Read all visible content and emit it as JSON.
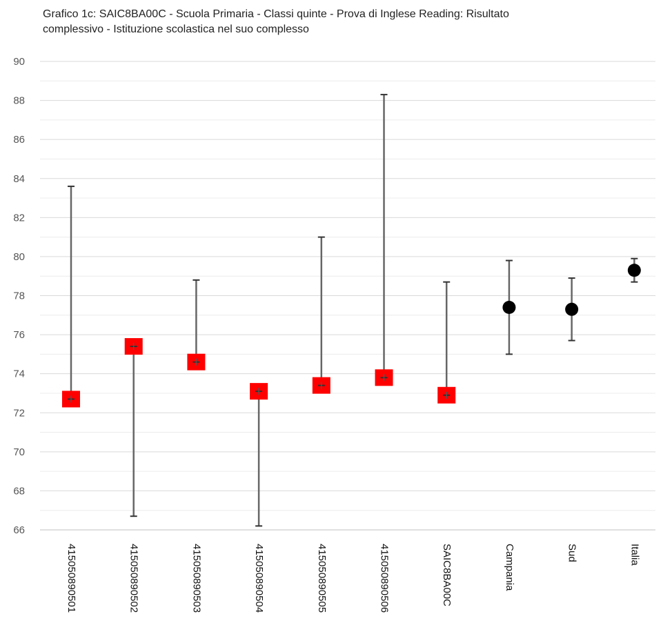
{
  "chart_data": {
    "type": "scatter",
    "title_line1": "Grafico 1c: SAIC8BA00C - Scuola Primaria - Classi quinte - Prova di Inglese Reading: Risultato",
    "title_line2": "complessivo - Istituzione scolastica nel suo complesso",
    "xlabel": "",
    "ylabel": "",
    "ylim": [
      66,
      90
    ],
    "ytick_step": 2,
    "minor_grid_step": 1,
    "grid": true,
    "categories": [
      "41505089050 1",
      "41505089050 2",
      "41505089050 3",
      "41505089050 4",
      "41505089050 5",
      "41505089050 6",
      "SAIC8BA00C",
      "Campania",
      "Sud",
      "Italia"
    ],
    "category_labels": [
      "415050890501",
      "415050890502",
      "415050890503",
      "415050890504",
      "415050890505",
      "415050890506",
      "SAIC8BA00C",
      "Campania",
      "Sud",
      "Italia"
    ],
    "points": [
      {
        "value": 72.7,
        "low": 72.7,
        "high": 83.6,
        "marker": "square",
        "color": "#ff0000"
      },
      {
        "value": 75.4,
        "low": 66.7,
        "high": 75.4,
        "marker": "square",
        "color": "#ff0000"
      },
      {
        "value": 74.6,
        "low": 74.6,
        "high": 78.8,
        "marker": "square",
        "color": "#ff0000"
      },
      {
        "value": 73.1,
        "low": 66.2,
        "high": 73.1,
        "marker": "square",
        "color": "#ff0000"
      },
      {
        "value": 73.4,
        "low": 73.4,
        "high": 81.0,
        "marker": "square",
        "color": "#ff0000"
      },
      {
        "value": 73.8,
        "low": 73.8,
        "high": 88.3,
        "marker": "square",
        "color": "#ff0000"
      },
      {
        "value": 72.9,
        "low": 72.9,
        "high": 78.7,
        "marker": "square",
        "color": "#ff0000"
      },
      {
        "value": 77.4,
        "low": 75.0,
        "high": 79.8,
        "marker": "circle",
        "color": "#000000"
      },
      {
        "value": 77.3,
        "low": 75.7,
        "high": 78.9,
        "marker": "circle",
        "color": "#000000"
      },
      {
        "value": 79.3,
        "low": 78.7,
        "high": 79.9,
        "marker": "circle",
        "color": "#000000"
      }
    ],
    "colors": {
      "errorbar": "#666666",
      "grid": "#d9d9d9",
      "minor_grid": "#ececec"
    }
  }
}
